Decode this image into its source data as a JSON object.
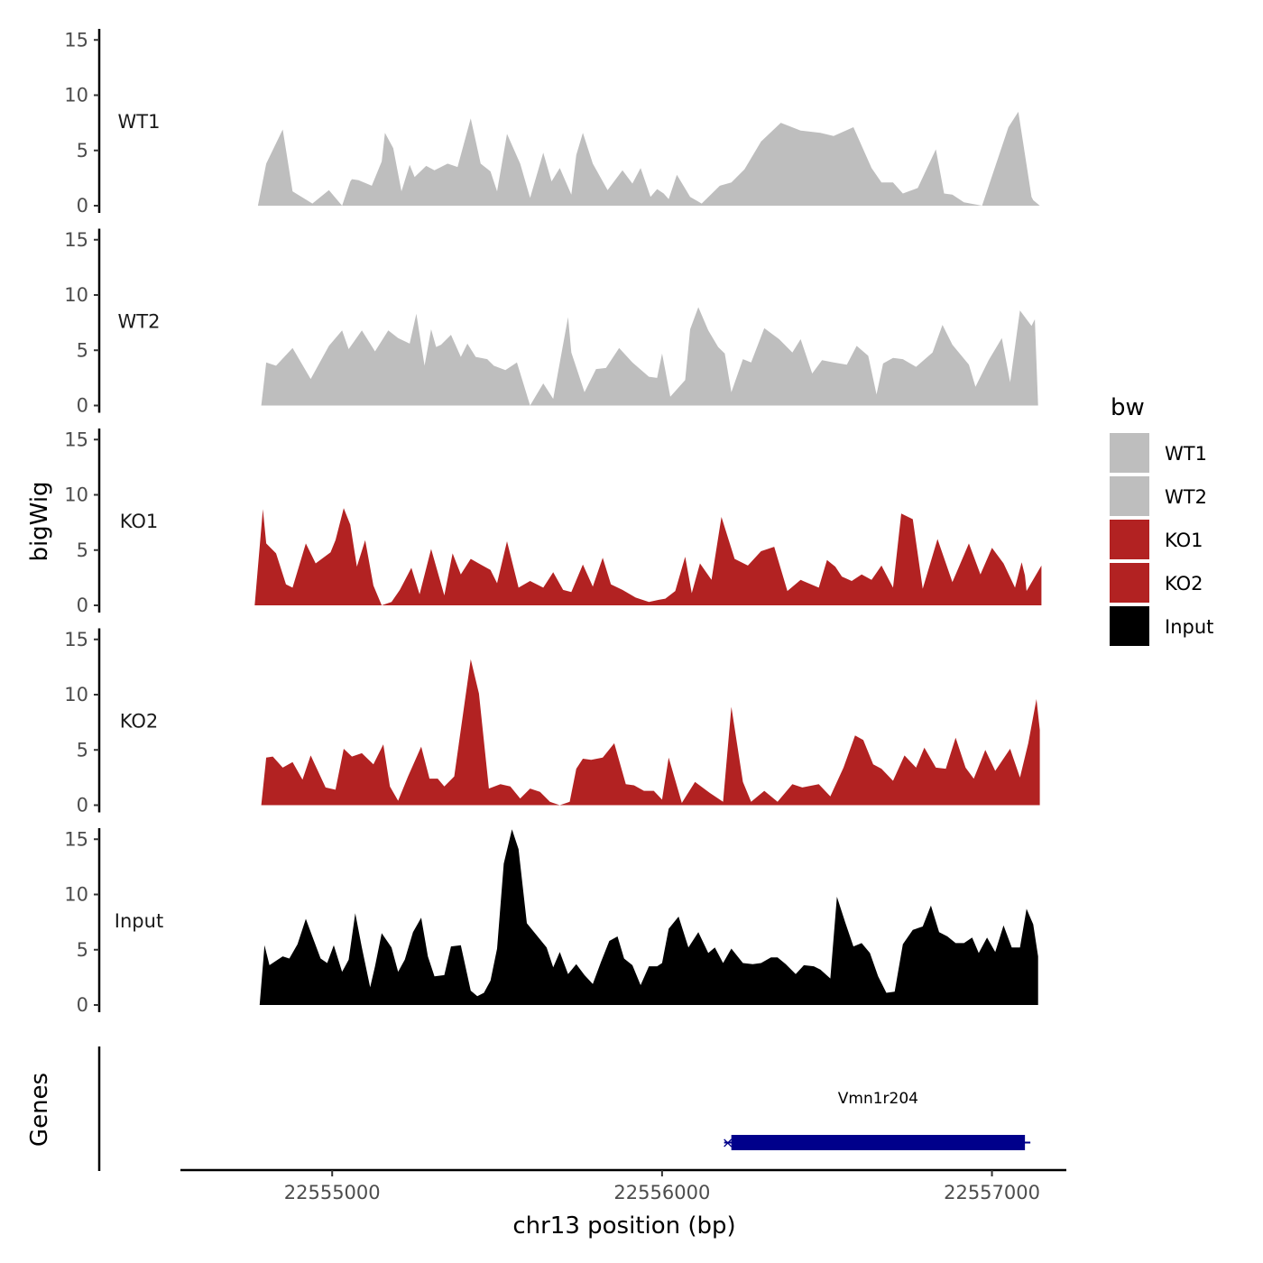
{
  "chart_data": {
    "type": "area",
    "chromosome": "chr13",
    "xlabel": "chr13 position (bp)",
    "ylabel": "bigWig",
    "genes_axis_label": "Genes",
    "xlim": [
      22554540,
      22557220
    ],
    "x_ticks": [
      22555000,
      22556000,
      22557000
    ],
    "x_tick_labels": [
      "22555000",
      "22556000",
      "22557000"
    ],
    "ylim": [
      0,
      16
    ],
    "y_ticks": [
      0,
      5,
      10,
      15
    ],
    "y_tick_labels": [
      "0",
      "5",
      "10",
      "15"
    ],
    "legend": {
      "title": "bw",
      "position": "right",
      "entries": [
        {
          "label": "WT1",
          "color": "#bebebe"
        },
        {
          "label": "WT2",
          "color": "#bebebe"
        },
        {
          "label": "KO1",
          "color": "#b22222"
        },
        {
          "label": "KO2",
          "color": "#b22222"
        },
        {
          "label": "Input",
          "color": "#000000"
        }
      ]
    },
    "series": [
      {
        "name": "WT1",
        "color": "#bebebe",
        "x": [
          22554775,
          22554800,
          22554850,
          22554880,
          22554940,
          22554990,
          22555030,
          22555055,
          22555060,
          22555080,
          22555120,
          22555150,
          22555160,
          22555185,
          22555210,
          22555235,
          22555250,
          22555285,
          22555310,
          22555350,
          22555380,
          22555420,
          22555450,
          22555480,
          22555500,
          22555530,
          22555570,
          22555600,
          22555640,
          22555665,
          22555690,
          22555725,
          22555740,
          22555760,
          22555790,
          22555835,
          22555880,
          22555910,
          22555935,
          22555965,
          22555985,
          22556005,
          22556020,
          22556045,
          22556085,
          22556120,
          22556175,
          22556210,
          22556250,
          22556300,
          22556360,
          22556420,
          22556480,
          22556520,
          22556580,
          22556635,
          22556665,
          22556700,
          22556730,
          22556775,
          22556830,
          22556855,
          22556880,
          22556915,
          22556970,
          22557050,
          22557080,
          22557120,
          22557125,
          22557145
        ],
        "values": [
          0,
          3.8,
          6.9,
          1.3,
          0.2,
          1.4,
          0,
          2.2,
          2.4,
          2.3,
          1.8,
          4,
          6.6,
          5.2,
          1.3,
          3.7,
          2.6,
          3.6,
          3.2,
          3.8,
          3.5,
          7.9,
          3.8,
          3.1,
          1.3,
          6.5,
          3.8,
          0.7,
          4.8,
          2.2,
          3.4,
          1,
          4.6,
          6.6,
          3.8,
          1.4,
          3.2,
          2,
          3.4,
          0.8,
          1.5,
          1.1,
          0.6,
          2.8,
          0.8,
          0.2,
          1.8,
          2.1,
          3.3,
          5.8,
          7.5,
          6.8,
          6.6,
          6.3,
          7.1,
          3.4,
          2.1,
          2.1,
          1.1,
          1.6,
          5.1,
          1.1,
          1,
          0.3,
          0,
          7.1,
          8.5,
          0.8,
          0.5,
          0
        ]
      },
      {
        "name": "WT2",
        "color": "#bebebe",
        "x": [
          22554785,
          22554800,
          22554830,
          22554880,
          22554935,
          22554990,
          22555030,
          22555050,
          22555090,
          22555130,
          22555170,
          22555200,
          22555235,
          22555255,
          22555280,
          22555300,
          22555315,
          22555330,
          22555360,
          22555390,
          22555410,
          22555435,
          22555470,
          22555490,
          22555525,
          22555560,
          22555600,
          22555640,
          22555670,
          22555715,
          22555725,
          22555765,
          22555800,
          22555830,
          22555870,
          22555910,
          22555960,
          22555985,
          22556000,
          22556025,
          22556070,
          22556085,
          22556110,
          22556140,
          22556170,
          22556190,
          22556210,
          22556245,
          22556270,
          22556310,
          22556355,
          22556395,
          22556420,
          22556455,
          22556485,
          22556520,
          22556560,
          22556590,
          22556625,
          22556650,
          22556670,
          22556700,
          22556730,
          22556770,
          22556820,
          22556850,
          22556880,
          22556930,
          22556950,
          22556990,
          22557030,
          22557055,
          22557085,
          22557120,
          22557130,
          22557140
        ],
        "values": [
          0,
          3.9,
          3.6,
          5.2,
          2.4,
          5.4,
          6.8,
          5.1,
          6.8,
          4.9,
          6.8,
          6.1,
          5.6,
          8.3,
          3.6,
          6.9,
          5.3,
          5.5,
          6.4,
          4.4,
          5.6,
          4.4,
          4.2,
          3.6,
          3.2,
          3.9,
          0,
          2,
          0.6,
          8,
          4.8,
          1.2,
          3.3,
          3.4,
          5.2,
          3.9,
          2.6,
          2.5,
          4.7,
          0.8,
          2.3,
          6.9,
          8.9,
          6.8,
          5.3,
          4.7,
          1.2,
          4.2,
          3.9,
          7,
          6,
          4.8,
          6,
          2.9,
          4.1,
          3.9,
          3.7,
          5.4,
          4.5,
          1,
          3.8,
          4.3,
          4.2,
          3.5,
          4.8,
          7.3,
          5.5,
          3.7,
          1.7,
          4.1,
          6.1,
          2.1,
          8.6,
          7.2,
          7.8,
          0
        ]
      },
      {
        "name": "KO1",
        "color": "#b22222",
        "x": [
          22554765,
          22554790,
          22554800,
          22554830,
          22554860,
          22554880,
          22554920,
          22554950,
          22554995,
          22555010,
          22555035,
          22555055,
          22555075,
          22555100,
          22555125,
          22555150,
          22555180,
          22555205,
          22555240,
          22555265,
          22555300,
          22555340,
          22555365,
          22555390,
          22555420,
          22555450,
          22555480,
          22555500,
          22555530,
          22555565,
          22555600,
          22555640,
          22555670,
          22555700,
          22555725,
          22555760,
          22555790,
          22555820,
          22555845,
          22555880,
          22555920,
          22555960,
          22555990,
          22556010,
          22556040,
          22556070,
          22556090,
          22556115,
          22556150,
          22556180,
          22556220,
          22556260,
          22556300,
          22556340,
          22556380,
          22556420,
          22556475,
          22556500,
          22556525,
          22556545,
          22556575,
          22556605,
          22556635,
          22556665,
          22556700,
          22556725,
          22556760,
          22556790,
          22556835,
          22556880,
          22556930,
          22556965,
          22557000,
          22557035,
          22557070,
          22557090,
          22557100,
          22557105,
          22557150
        ],
        "values": [
          0,
          8.7,
          5.6,
          4.7,
          1.9,
          1.6,
          5.6,
          3.8,
          4.8,
          5.9,
          8.8,
          7.3,
          3.5,
          5.9,
          1.8,
          0,
          0.3,
          1.4,
          3.4,
          1,
          5.1,
          0.9,
          4.7,
          2.8,
          4.2,
          3.7,
          3.2,
          2,
          5.8,
          1.6,
          2.2,
          1.6,
          3,
          1.4,
          1.2,
          3.7,
          1.7,
          4.3,
          1.9,
          1.4,
          0.7,
          0.3,
          0.5,
          0.6,
          1.3,
          4.4,
          1.1,
          3.8,
          2.3,
          8,
          4.2,
          3.6,
          4.9,
          5.3,
          1.3,
          2.3,
          1.6,
          4.1,
          3.5,
          2.6,
          2.2,
          2.8,
          2.3,
          3.6,
          1.6,
          8.3,
          7.8,
          1.5,
          6,
          2.1,
          5.6,
          2.8,
          5.2,
          3.8,
          1.6,
          3.9,
          2.7,
          1.3,
          3.6
        ]
      },
      {
        "name": "KO2",
        "color": "#b22222",
        "x": [
          22554785,
          22554800,
          22554820,
          22554850,
          22554880,
          22554910,
          22554935,
          22554980,
          22555010,
          22555035,
          22555060,
          22555090,
          22555125,
          22555155,
          22555175,
          22555200,
          22555230,
          22555270,
          22555295,
          22555320,
          22555340,
          22555370,
          22555420,
          22555445,
          22555475,
          22555510,
          22555540,
          22555570,
          22555600,
          22555630,
          22555660,
          22555690,
          22555720,
          22555740,
          22555760,
          22555785,
          22555820,
          22555855,
          22555890,
          22555915,
          22555945,
          22555975,
          22556000,
          22556020,
          22556060,
          22556100,
          22556145,
          22556185,
          22556210,
          22556245,
          22556270,
          22556310,
          22556350,
          22556395,
          22556425,
          22556475,
          22556510,
          22556550,
          22556585,
          22556610,
          22556640,
          22556665,
          22556700,
          22556735,
          22556770,
          22556795,
          22556830,
          22556860,
          22556890,
          22556920,
          22556945,
          22556980,
          22557010,
          22557055,
          22557085,
          22557110,
          22557135,
          22557145
        ],
        "values": [
          0,
          4.3,
          4.4,
          3.4,
          3.9,
          2.3,
          4.5,
          1.6,
          1.4,
          5.1,
          4.4,
          4.7,
          3.7,
          5.5,
          1.7,
          0.4,
          2.6,
          5.3,
          2.4,
          2.4,
          1.7,
          2.6,
          13.2,
          10.1,
          1.5,
          1.9,
          1.7,
          0.6,
          1.5,
          1.2,
          0.3,
          0,
          0.3,
          3.3,
          4.2,
          4.1,
          4.3,
          5.6,
          1.9,
          1.8,
          1.3,
          1.3,
          0.5,
          4.3,
          0.2,
          2.1,
          1.1,
          0.3,
          8.9,
          2.1,
          0.3,
          1.3,
          0.3,
          1.9,
          1.6,
          1.9,
          0.8,
          3.4,
          6.3,
          5.9,
          3.7,
          3.3,
          2.2,
          4.5,
          3.4,
          5.2,
          3.4,
          3.3,
          6.1,
          3.4,
          2.4,
          5,
          3.1,
          5.1,
          2.5,
          5.6,
          9.6,
          6.8
        ]
      },
      {
        "name": "Input",
        "color": "#000000",
        "x": [
          22554780,
          22554795,
          22554810,
          22554830,
          22554850,
          22554870,
          22554895,
          22554920,
          22554945,
          22554965,
          22554985,
          22555005,
          22555030,
          22555050,
          22555070,
          22555090,
          22555115,
          22555130,
          22555150,
          22555180,
          22555200,
          22555220,
          22555245,
          22555270,
          22555290,
          22555310,
          22555340,
          22555360,
          22555390,
          22555420,
          22555440,
          22555460,
          22555480,
          22555500,
          22555520,
          22555545,
          22555565,
          22555590,
          22555620,
          22555650,
          22555670,
          22555690,
          22555715,
          22555740,
          22555765,
          22555790,
          22555815,
          22555840,
          22555865,
          22555885,
          22555910,
          22555935,
          22555960,
          22555985,
          22556000,
          22556020,
          22556050,
          22556080,
          22556110,
          22556140,
          22556160,
          22556185,
          22556210,
          22556245,
          22556275,
          22556300,
          22556330,
          22556350,
          22556375,
          22556405,
          22556430,
          22556460,
          22556480,
          22556510,
          22556530,
          22556555,
          22556580,
          22556605,
          22556630,
          22556655,
          22556680,
          22556705,
          22556730,
          22556760,
          22556790,
          22556815,
          22556840,
          22556865,
          22556890,
          22556915,
          22556940,
          22556960,
          22556985,
          22557010,
          22557035,
          22557060,
          22557085,
          22557105,
          22557125,
          22557140
        ],
        "values": [
          0,
          5.4,
          3.6,
          4,
          4.4,
          4.2,
          5.5,
          7.8,
          5.8,
          4.2,
          3.8,
          5.4,
          3,
          4.1,
          8.3,
          5.2,
          1.6,
          3.5,
          6.5,
          5.2,
          3,
          4.1,
          6.6,
          7.9,
          4.4,
          2.6,
          2.7,
          5.3,
          5.4,
          1.3,
          0.8,
          1.1,
          2.2,
          5.1,
          12.8,
          15.9,
          14.1,
          7.4,
          6.3,
          5.2,
          3.4,
          4.8,
          2.8,
          3.7,
          2.7,
          1.9,
          3.9,
          5.8,
          6.2,
          4.2,
          3.6,
          1.8,
          3.5,
          3.5,
          3.8,
          6.9,
          8,
          5.2,
          6.6,
          4.7,
          5.2,
          3.8,
          5.1,
          3.8,
          3.7,
          3.8,
          4.3,
          4.3,
          3.7,
          2.8,
          3.6,
          3.5,
          3.2,
          2.4,
          9.8,
          7.5,
          5.3,
          5.6,
          4.7,
          2.6,
          1.1,
          1.2,
          5.5,
          6.8,
          7.1,
          9,
          6.6,
          6.2,
          5.6,
          5.6,
          6.1,
          4.7,
          6.1,
          4.8,
          7.2,
          5.2,
          5.2,
          8.7,
          7.3,
          4.4
        ]
      }
    ],
    "genes": [
      {
        "name": "Vmn1r204",
        "start": 22556210,
        "end": 22557100,
        "strand": "-",
        "color": "#00008b"
      }
    ]
  }
}
